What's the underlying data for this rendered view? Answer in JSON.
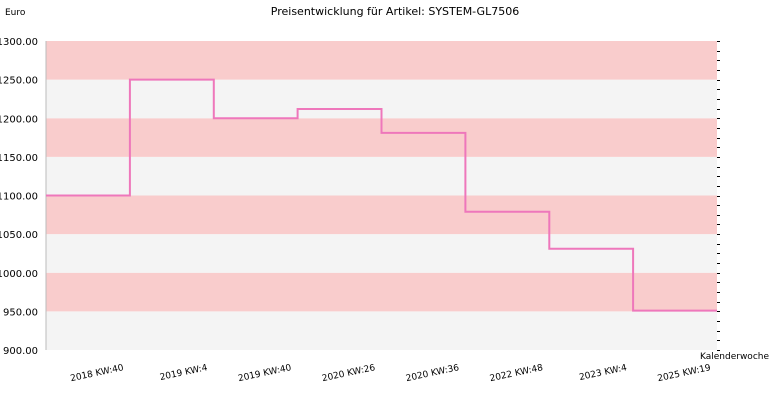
{
  "chart_data": {
    "type": "line",
    "step": true,
    "title": "Preisentwicklung für Artikel: SYSTEM-GL7506",
    "ylabel": "Euro",
    "xlabel": "Kalenderwoche",
    "ylim": [
      900,
      1300
    ],
    "yticks": [
      "900.00",
      "950.00",
      "1000.00",
      "1050.00",
      "1100.00",
      "1150.00",
      "1200.00",
      "1250.00",
      "1300.00"
    ],
    "xticks": [
      "2018 KW:40",
      "2019 KW:4",
      "2019 KW:40",
      "2020 KW:26",
      "2020 KW:36",
      "2022 KW:48",
      "2023 KW:4",
      "2025 KW:19"
    ],
    "series": [
      {
        "color": "#ee77bb",
        "values": [
          1100,
          1250,
          1200,
          1212,
          1181,
          1079,
          1031,
          951
        ]
      }
    ],
    "colors": {
      "band_dark": "#f9cccc",
      "band_light": "#f4f4f4",
      "line": "#ee77bb"
    },
    "grid": true,
    "legend": "none"
  }
}
